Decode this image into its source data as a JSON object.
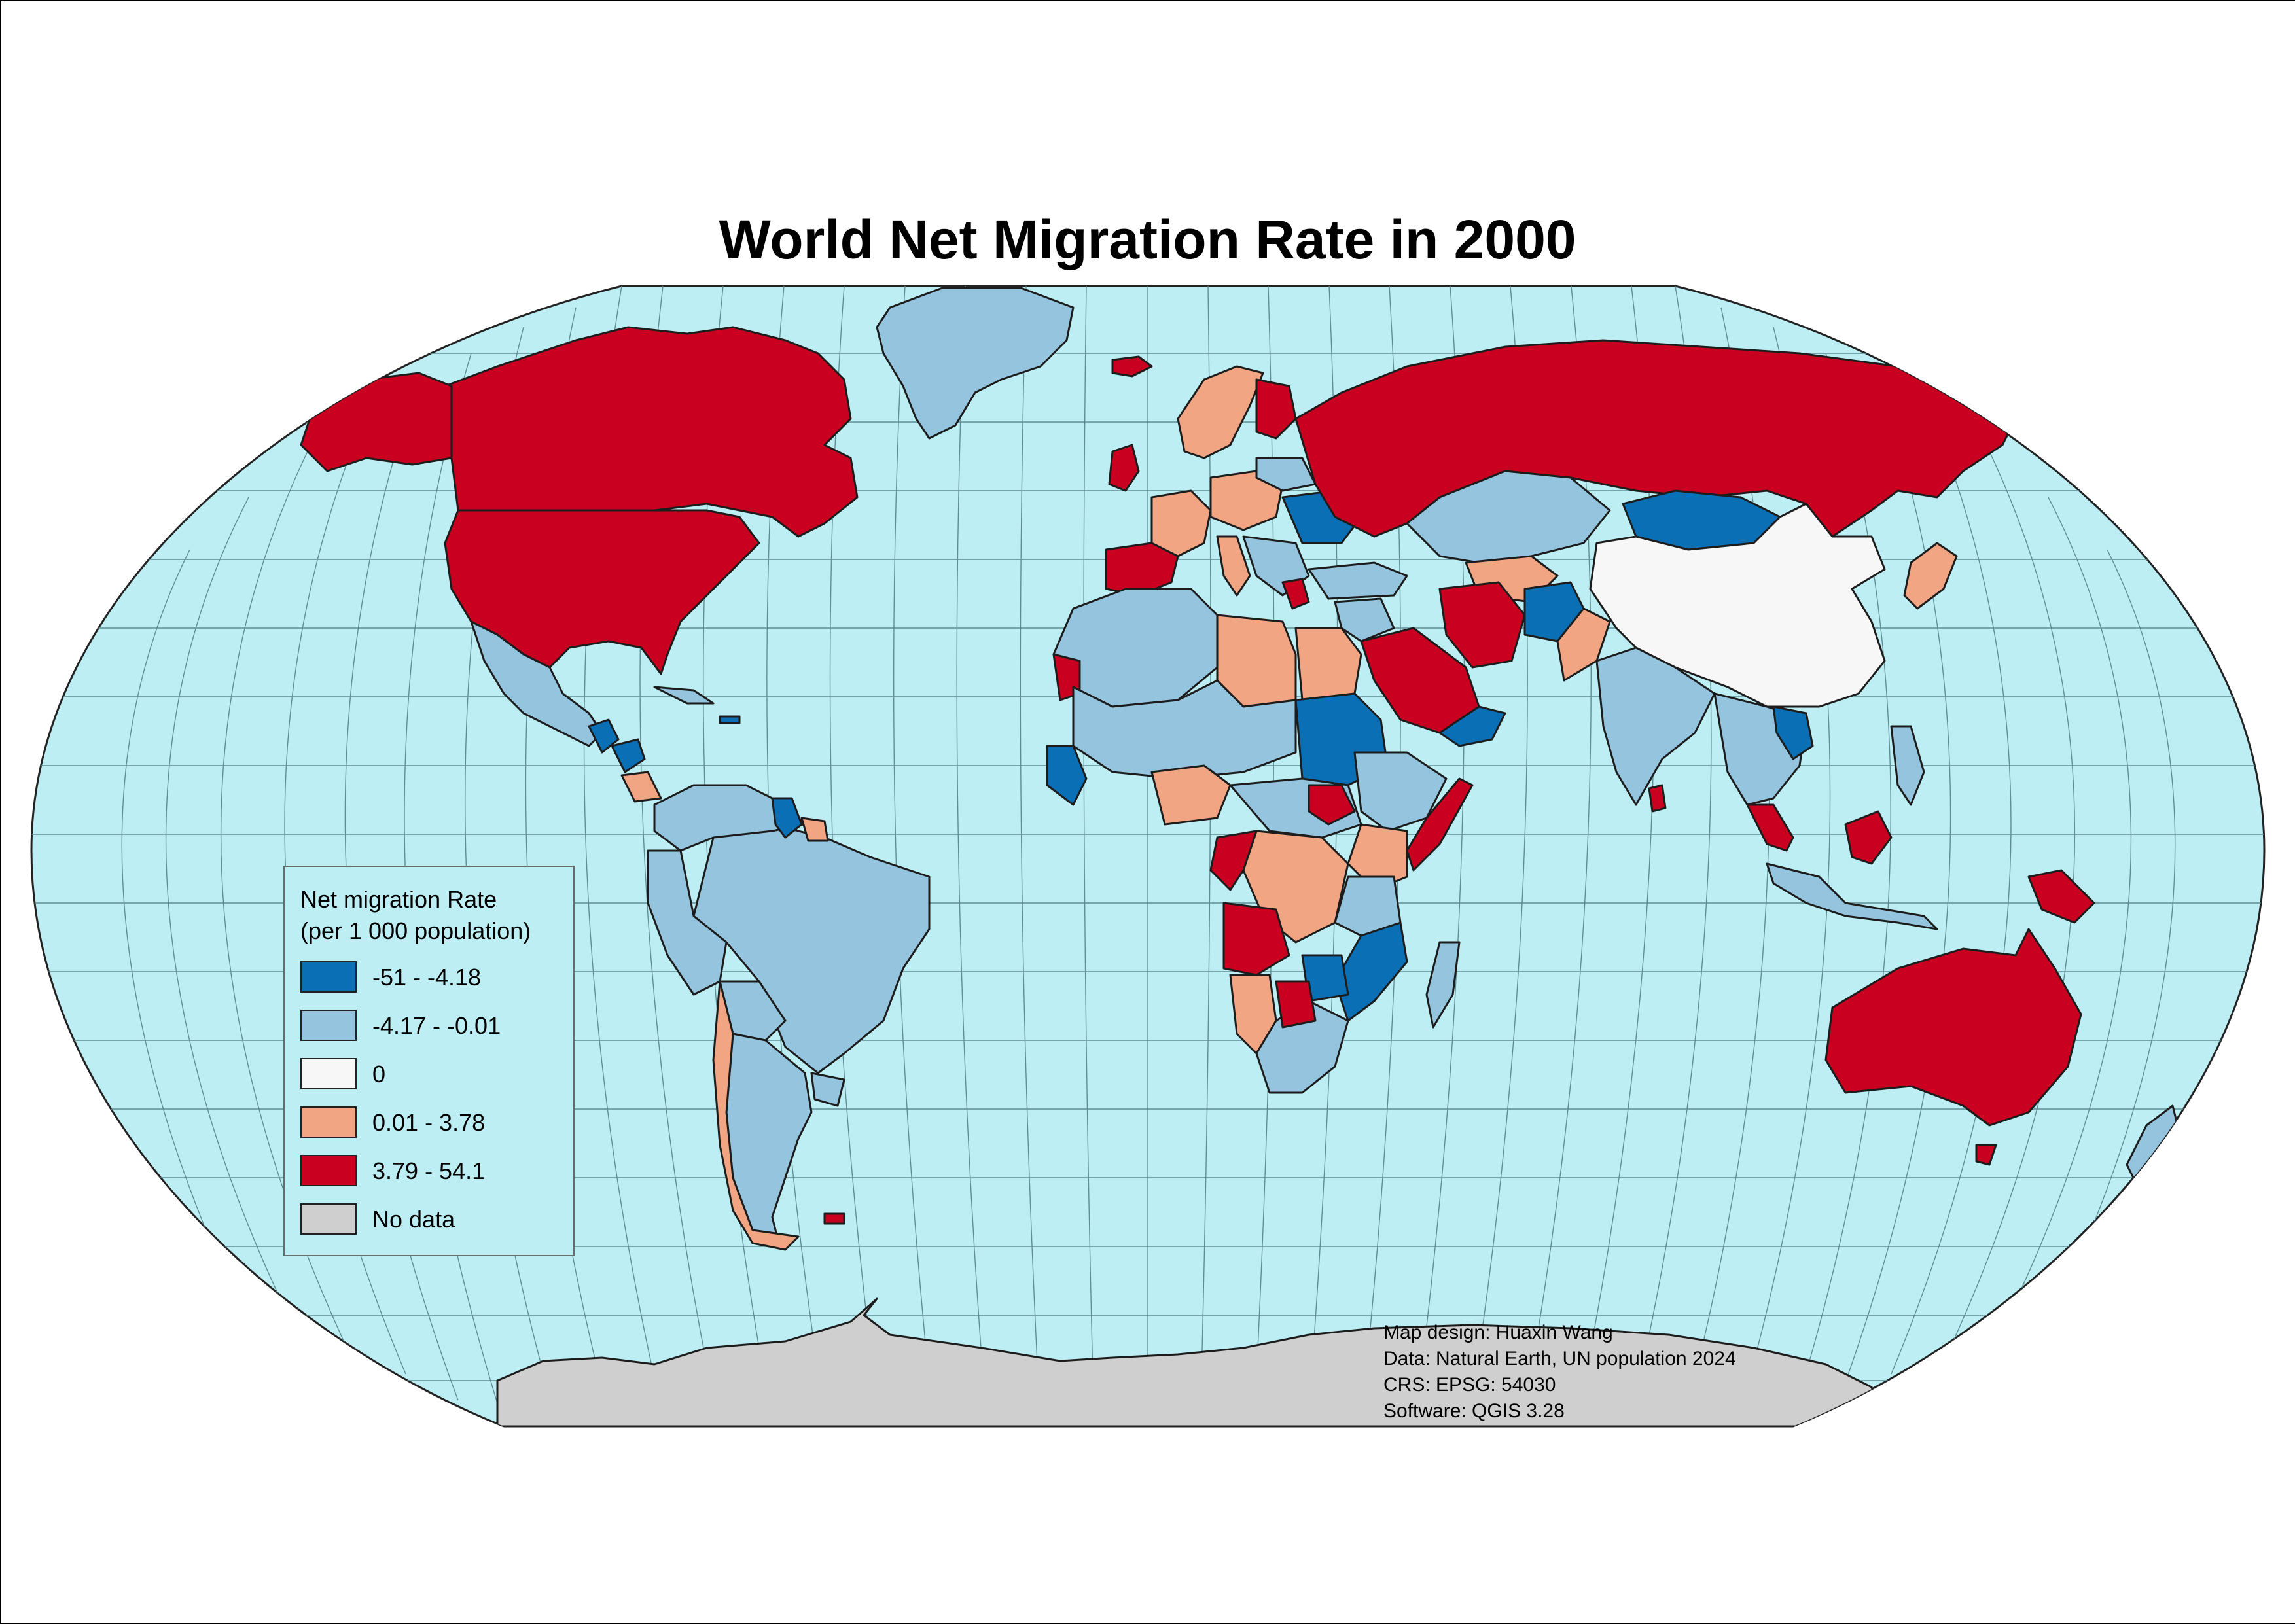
{
  "title": "World Net Migration Rate in 2000",
  "colors": {
    "ocean": "#bdeef3",
    "class_1": "#0a6fb5",
    "class_2": "#94c4de",
    "class_3": "#f7f7f7",
    "class_4": "#f2a583",
    "class_5": "#c9001f",
    "no_data": "#cfcfcf"
  },
  "legend": {
    "title_line1": "Net migration Rate",
    "title_line2": "(per 1 000 population)",
    "items": [
      {
        "label": "-51 - -4.18",
        "color": "#0a6fb5"
      },
      {
        "label": "-4.17 - -0.01",
        "color": "#94c4de"
      },
      {
        "label": "0",
        "color": "#f7f7f7"
      },
      {
        "label": "0.01 - 3.78",
        "color": "#f2a583"
      },
      {
        "label": "3.79 - 54.1",
        "color": "#c9001f"
      },
      {
        "label": "No data",
        "color": "#cfcfcf"
      }
    ]
  },
  "credits": {
    "design": "Map design: Huaxin Wang",
    "data": "Data: Natural Earth, UN population 2024",
    "crs": "CRS: EPSG: 54030",
    "software": "Software: QGIS 3.28"
  }
}
